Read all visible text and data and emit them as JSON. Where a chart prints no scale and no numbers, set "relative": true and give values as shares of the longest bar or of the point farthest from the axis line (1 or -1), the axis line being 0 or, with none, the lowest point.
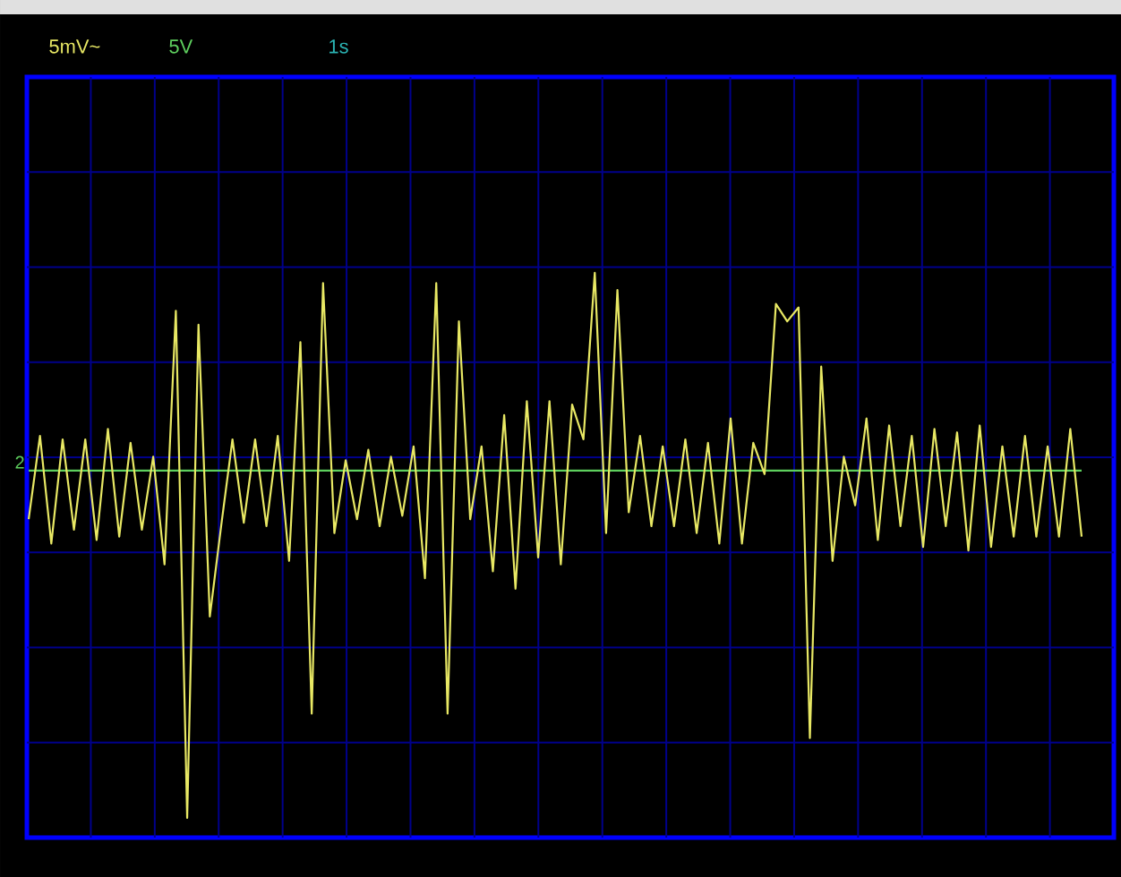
{
  "chart_data": {
    "type": "line",
    "relative": true,
    "grid": true,
    "categories": [
      null,
      null,
      null,
      null,
      null,
      null,
      null,
      null,
      null,
      null,
      null,
      null,
      null,
      null,
      null,
      null,
      null,
      null,
      null,
      null,
      null,
      null,
      null,
      null,
      null,
      null,
      null,
      null,
      null,
      null,
      null,
      null,
      null,
      null,
      null,
      null,
      null,
      null,
      null,
      null,
      null,
      null,
      null,
      null,
      null,
      null,
      null,
      null,
      null,
      null,
      null,
      null,
      null,
      null,
      null,
      null,
      null,
      null,
      null,
      null,
      null,
      null,
      null,
      null,
      null,
      null,
      null,
      null,
      null,
      null,
      null,
      null,
      null,
      null,
      null,
      null,
      null,
      null,
      null,
      null,
      null,
      null,
      null,
      null,
      null,
      null,
      null,
      null,
      null,
      null,
      null,
      null,
      null,
      null
    ],
    "annotations": [
      "5mV~",
      "5V",
      "1s"
    ],
    "series": [
      {
        "color": "#e8e864",
        "values": [
          -0.14,
          0.1,
          -0.21,
          0.09,
          -0.17,
          0.09,
          -0.2,
          0.12,
          -0.19,
          0.08,
          -0.17,
          0.04,
          -0.27,
          0.46,
          -1,
          0.42,
          -0.42,
          -0.16,
          0.09,
          -0.15,
          0.09,
          -0.16,
          0.1,
          -0.26,
          0.37,
          -0.7,
          0.54,
          -0.18,
          0.03,
          -0.14,
          0.06,
          -0.16,
          0.04,
          -0.13,
          0.07,
          -0.31,
          0.54,
          -0.7,
          0.43,
          -0.14,
          0.07,
          -0.29,
          0.16,
          -0.34,
          0.2,
          -0.25,
          0.2,
          -0.27,
          0.19,
          0.09,
          0.57,
          -0.18,
          0.52,
          -0.12,
          0.1,
          -0.16,
          0.07,
          -0.16,
          0.09,
          -0.18,
          0.08,
          -0.21,
          0.15,
          -0.21,
          0.08,
          -0.01,
          0.48,
          0.43,
          0.47,
          -0.77,
          0.3,
          -0.26,
          0.04,
          -0.1,
          0.15,
          -0.2,
          0.13,
          -0.16,
          0.1,
          -0.22,
          0.12,
          -0.16,
          0.11,
          -0.23,
          0.13,
          -0.22,
          0.07,
          -0.19,
          0.1,
          -0.19,
          0.07,
          -0.19,
          0.12,
          -0.19
        ]
      },
      {
        "name": "2",
        "color": "#5ecf5e",
        "values": [
          0,
          0,
          0,
          0,
          0,
          0,
          0,
          0,
          0,
          0,
          0,
          0,
          0,
          0,
          0,
          0,
          0,
          0,
          0,
          0,
          0,
          0,
          0,
          0,
          0,
          0,
          0,
          0,
          0,
          0,
          0,
          0,
          0,
          0,
          0,
          0,
          0,
          0,
          0,
          0,
          0,
          0,
          0,
          0,
          0,
          0,
          0,
          0,
          0,
          0,
          0,
          0,
          0,
          0,
          0,
          0,
          0,
          0,
          0,
          0,
          0,
          0,
          0,
          0,
          0,
          0,
          0,
          0,
          0,
          0,
          0,
          0,
          0,
          0,
          0,
          0,
          0,
          0,
          0,
          0,
          0,
          0,
          0,
          0,
          0,
          0,
          0,
          0,
          0,
          0,
          0,
          0,
          0,
          0
        ]
      }
    ]
  }
}
